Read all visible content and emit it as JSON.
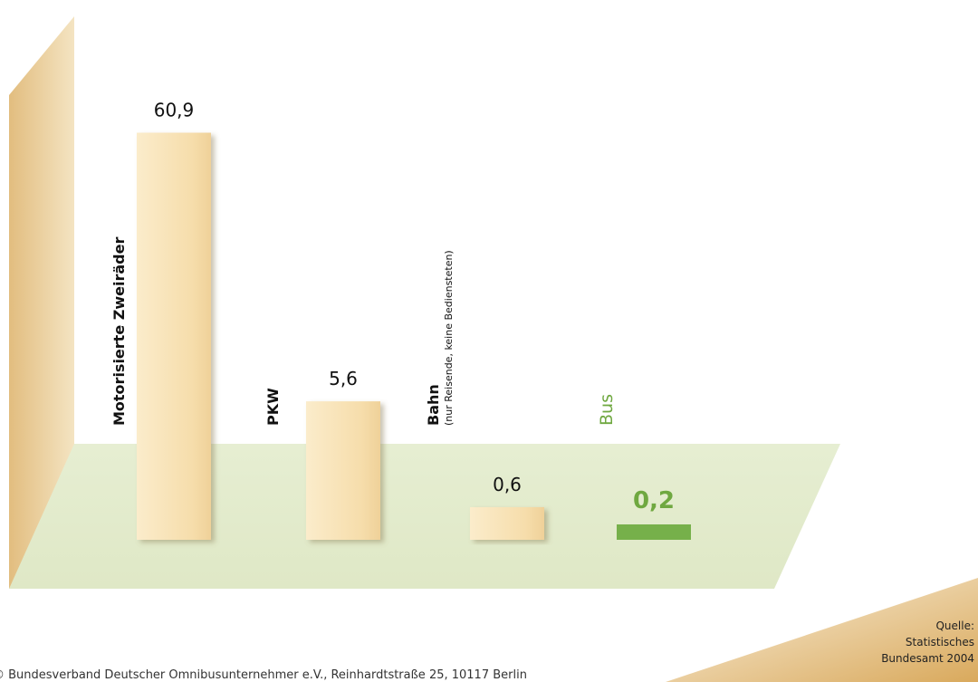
{
  "chart_data": {
    "type": "bar",
    "categories": [
      "Motorisierte Zweiräder",
      "PKW",
      "Bahn",
      "Bus"
    ],
    "category_notes": [
      "",
      "",
      "(nur Reisende, keine Bediensteten)",
      ""
    ],
    "values": [
      60.9,
      5.6,
      0.6,
      0.2
    ],
    "value_labels": [
      "60,9",
      "5,6",
      "0,6",
      "0,2"
    ],
    "highlight_index": 3,
    "title": "",
    "xlabel": "",
    "ylabel": "",
    "grid": false,
    "colors": {
      "bar": "#f7e2b2",
      "bar_highlight": "#76b04a",
      "floor": "#e3eccd",
      "wall": "#e9cb93",
      "highlight_text": "#6fa840"
    }
  },
  "source": {
    "line1": "Quelle:",
    "line2": "Statistisches",
    "line3": "Bundesamt 2004"
  },
  "footer": "© Bundesverband Deutscher Omnibusunternehmer e.V., Reinhardtstraße 25, 10117 Berlin"
}
